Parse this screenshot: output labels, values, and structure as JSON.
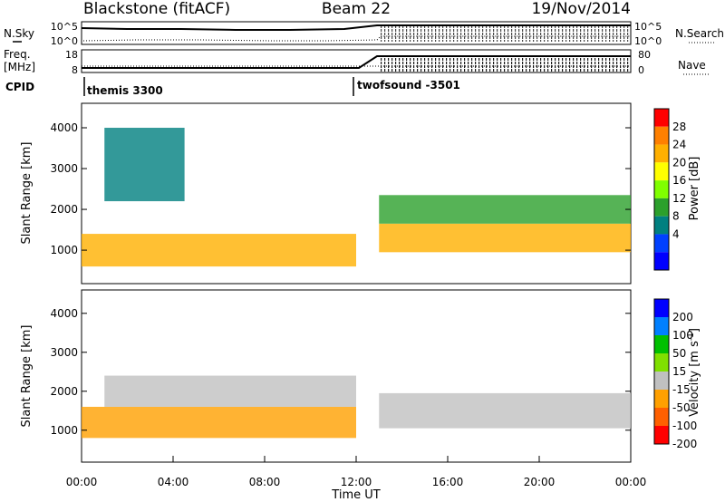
{
  "header": {
    "station": "Blackstone (fitACF)",
    "beam": "Beam 22",
    "date": "19/Nov/2014"
  },
  "summary_panels": {
    "nsky_label": "N.Sky",
    "nsky_ticks": [
      "10^5",
      "10^0"
    ],
    "nsearch_label": "N.Search",
    "nsearch_ticks": [
      "10^5",
      "10^0"
    ],
    "freq_label_1": "Freq.",
    "freq_label_2": "[MHz]",
    "freq_ticks": [
      "18",
      "8"
    ],
    "nave_label": "Nave",
    "nave_ticks": [
      "80",
      "0"
    ],
    "cpid_label": "CPID",
    "cpid_segments": [
      {
        "label": "themis 3300",
        "start_hour": 0
      },
      {
        "label": "twofsound -3501",
        "start_hour": 12
      }
    ]
  },
  "chart_data": [
    {
      "type": "heatmap",
      "name": "power",
      "ylabel": "Slant Range [km]",
      "yticks": [
        "4000",
        "3000",
        "2000",
        "1000"
      ],
      "ylim": [
        180,
        4600
      ],
      "xlim": [
        0,
        24
      ],
      "colorbar": {
        "label": "Power [dB]",
        "ticks": [
          "28",
          "24",
          "20",
          "16",
          "12",
          "8",
          "4"
        ],
        "colors": [
          "#ff0000",
          "#ff8000",
          "#ffb000",
          "#ffff00",
          "#80ff00",
          "#2ca02c",
          "#008080",
          "#0040ff",
          "#0000ff"
        ]
      },
      "bands": [
        {
          "from_hour": 0,
          "to_hour": 12,
          "range_center_km": 1000,
          "range_width_km": 800,
          "power_db": 22
        },
        {
          "from_hour": 1,
          "to_hour": 4.5,
          "range_center_km": 3100,
          "range_width_km": 1800,
          "power_db": 8
        },
        {
          "from_hour": 13,
          "to_hour": 24,
          "range_center_km": 1300,
          "range_width_km": 700,
          "power_db": 20
        },
        {
          "from_hour": 13,
          "to_hour": 24,
          "range_center_km": 2000,
          "range_width_km": 700,
          "power_db": 10
        }
      ]
    },
    {
      "type": "heatmap",
      "name": "velocity",
      "ylabel": "Slant Range [km]",
      "yticks": [
        "4000",
        "3000",
        "2000",
        "1000"
      ],
      "xlim": [
        0,
        24
      ],
      "xlabel": "Time UT",
      "xticks": [
        "00:00",
        "04:00",
        "08:00",
        "12:00",
        "16:00",
        "20:00",
        "00:00"
      ],
      "colorbar": {
        "label": "Velocity [m s",
        "label_sup": "-1",
        "label_end": "]",
        "ticks": [
          "200",
          "100",
          "50",
          "15",
          "-15",
          "-50",
          "-100",
          "-200"
        ],
        "colors": [
          "#0000ff",
          "#0080ff",
          "#00c000",
          "#80e000",
          "#c0c0c0",
          "#ffa000",
          "#ff6000",
          "#ff0000"
        ]
      },
      "bands": [
        {
          "from_hour": 0,
          "to_hour": 12,
          "range_center_km": 1200,
          "range_width_km": 800,
          "velocity_ms": -40
        },
        {
          "from_hour": 1,
          "to_hour": 12,
          "range_center_km": 2000,
          "range_width_km": 800,
          "velocity_ms": 0
        },
        {
          "from_hour": 13,
          "to_hour": 24,
          "range_center_km": 1500,
          "range_width_km": 900,
          "velocity_ms": 0
        }
      ]
    }
  ]
}
